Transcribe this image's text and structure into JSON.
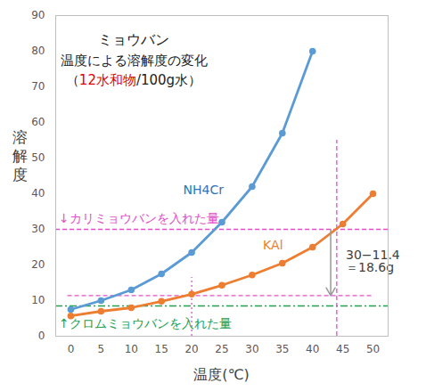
{
  "chart_data": {
    "type": "line",
    "title": "ミョウバン",
    "subtitle": [
      "温度による溶解度の変化",
      [
        {
          "text": "（"
        },
        {
          "text": "12水和物",
          "color": "#e00000"
        },
        {
          "text": "/100g水）"
        }
      ]
    ],
    "x_label": "温度(℃)",
    "y_label": "溶解度",
    "x": [
      0,
      5,
      10,
      15,
      20,
      25,
      30,
      35,
      40,
      45,
      50
    ],
    "series": [
      {
        "name": "NH4Cr",
        "color": "#5b9bd5",
        "marker": "circle",
        "values": [
          7.5,
          10,
          13,
          17.5,
          23.5,
          32,
          42,
          57,
          80,
          null,
          null
        ]
      },
      {
        "name": "KAl",
        "color": "#ed7d31",
        "marker": "circle",
        "values": [
          5.7,
          7,
          8,
          9.8,
          11.8,
          14.3,
          17.2,
          20.5,
          25,
          31.5,
          40
        ]
      }
    ],
    "xlim": [
      -2.5,
      52.5
    ],
    "xticks": [
      0,
      5,
      10,
      15,
      20,
      25,
      30,
      35,
      40,
      45,
      50
    ],
    "ylim": [
      0,
      90
    ],
    "yticks": [
      0,
      10,
      20,
      30,
      40,
      50,
      60,
      70,
      80,
      90
    ],
    "grid": false,
    "reference_lines": [
      {
        "axis": "y",
        "value": 30,
        "from": -2.5,
        "to": 52.5,
        "color": "#e050c8",
        "line_style": "dashed"
      },
      {
        "axis": "y",
        "value": 11.4,
        "from": -0.5,
        "to": 50,
        "color": "#e050c8",
        "line_style": "dashed"
      },
      {
        "axis": "y",
        "value": 8.5,
        "from": -2.5,
        "to": 52.5,
        "color": "#22a050",
        "line_style": "dashdot"
      },
      {
        "axis": "x",
        "value": 20,
        "from": 0,
        "to": 16.5,
        "color": "#e050c8",
        "line_style": "dotted"
      },
      {
        "axis": "x",
        "value": 44,
        "from": 0,
        "to": 55,
        "color": "#e050c8",
        "line_style": "dashed"
      }
    ],
    "arrow": {
      "x": 43,
      "y1": 30,
      "y2": 11.4,
      "color": "#999999"
    },
    "annotations": [
      {
        "text": "NH4Cr",
        "x": 18.6,
        "y": 41,
        "color": "#2e75b6"
      },
      {
        "text": "KAl",
        "x": 31.8,
        "y": 25.5,
        "color": "#ed7d31"
      },
      {
        "text": "↓カリミョウバンを入れた量",
        "x": -2,
        "y": 33,
        "color": "#e050c8"
      },
      {
        "text": "↑クロムミョウバンを入れた量",
        "x": -2,
        "y": 3.5,
        "color": "#22a050"
      },
      {
        "text": "30−11.4\n＝18.6g",
        "x": 45.5,
        "y": 21,
        "color": "#404040"
      }
    ]
  }
}
